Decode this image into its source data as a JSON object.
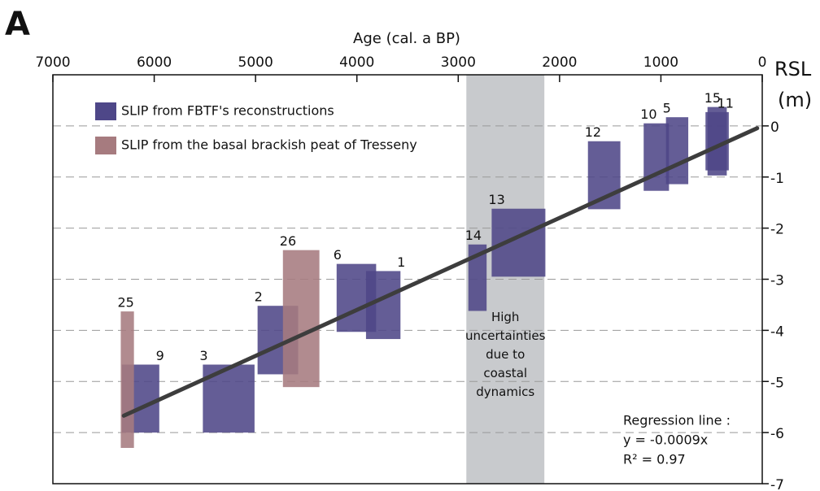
{
  "chart_data": {
    "type": "box",
    "panel": "A",
    "xlabel": "Age (cal. a BP)",
    "ylabel": [
      "RSL",
      "(m)"
    ],
    "xlim": [
      7000,
      0
    ],
    "xticks": [
      7000,
      6000,
      5000,
      4000,
      3000,
      2000,
      1000,
      0
    ],
    "ylim": [
      -7,
      1
    ],
    "yticks": [
      0,
      -1,
      -2,
      -3,
      -4,
      -5,
      -6,
      -7
    ],
    "grid": true,
    "band": {
      "x": [
        2920,
        2150
      ],
      "color": "#c8cacd",
      "text": [
        "High",
        "uncertainties",
        "due to",
        "coastal",
        "dynamics"
      ]
    },
    "series": [
      {
        "name": "SLIP from FBTF's reconstructions",
        "color": "#4e4788",
        "boxes": [
          {
            "label": "9",
            "x": [
              6320,
              5950
            ],
            "y": [
              -6.0,
              -4.67
            ]
          },
          {
            "label": "3",
            "x": [
              5520,
              5010
            ],
            "y": [
              -6.0,
              -4.67
            ]
          },
          {
            "label": "2",
            "x": [
              4980,
              4580
            ],
            "y": [
              -4.86,
              -3.52
            ]
          },
          {
            "label": "6",
            "x": [
              4200,
              3810
            ],
            "y": [
              -4.03,
              -2.7
            ]
          },
          {
            "label": "1",
            "x": [
              3910,
              3570
            ],
            "y": [
              -4.17,
              -2.84
            ]
          },
          {
            "label": "14",
            "x": [
              2900,
              2720
            ],
            "y": [
              -3.62,
              -2.32
            ]
          },
          {
            "label": "13",
            "x": [
              2670,
              2140
            ],
            "y": [
              -2.95,
              -1.62
            ]
          },
          {
            "label": "12",
            "x": [
              1720,
              1400
            ],
            "y": [
              -1.63,
              -0.3
            ]
          },
          {
            "label": "10",
            "x": [
              1170,
              920
            ],
            "y": [
              -1.27,
              0.05
            ]
          },
          {
            "label": "5",
            "x": [
              950,
              730
            ],
            "y": [
              -1.14,
              0.17
            ]
          },
          {
            "label": "15",
            "x": [
              540,
              350
            ],
            "y": [
              -0.97,
              0.37
            ]
          },
          {
            "label": "11",
            "x": [
              560,
              330
            ],
            "y": [
              -0.87,
              0.27
            ]
          }
        ]
      },
      {
        "name": "SLIP from the basal brackish peat of Tresseny",
        "color": "#a67b7f",
        "boxes": [
          {
            "label": "25",
            "x": [
              6330,
              6200
            ],
            "y": [
              -6.3,
              -3.63
            ]
          },
          {
            "label": "26",
            "x": [
              4730,
              4370
            ],
            "y": [
              -5.11,
              -2.43
            ]
          }
        ]
      }
    ],
    "regression": {
      "x": [
        6300,
        50
      ],
      "values": [
        -5.67,
        -0.045
      ],
      "color": "#3d3d3d",
      "text": [
        "Regression line :",
        "y = -0.0009x",
        "R² = 0.97"
      ]
    }
  }
}
